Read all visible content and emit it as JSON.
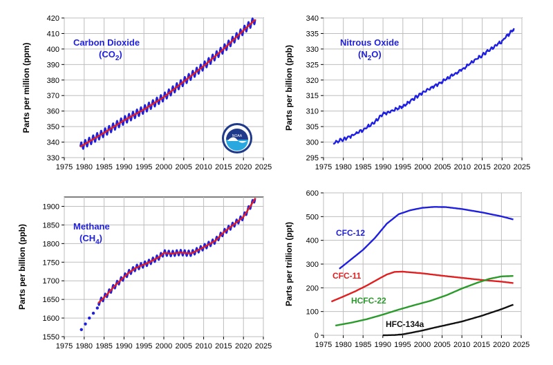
{
  "chart_data": [
    {
      "id": "co2",
      "type": "line",
      "title": "Carbon Dioxide",
      "formula": "(CO",
      "formula_sub": "2",
      "formula_end": ")",
      "ylabel": "Parts per million (ppm)",
      "xlim": [
        1975,
        2025
      ],
      "ylim": [
        330,
        420
      ],
      "xticks": [
        "1975",
        "1980",
        "1985",
        "1990",
        "1995",
        "2000",
        "2005",
        "2010",
        "2015",
        "2020",
        "2025"
      ],
      "yticks": [
        "330",
        "340",
        "350",
        "360",
        "370",
        "380",
        "390",
        "400",
        "410",
        "420"
      ],
      "series": [
        {
          "color": "#1f1fe0",
          "style": "seasonal",
          "amplitude": 2.6,
          "x": [
            1979,
            1985,
            1990,
            1995,
            2000,
            2005,
            2010,
            2015,
            2020,
            2023
          ],
          "values": [
            337,
            346,
            354,
            361,
            369,
            379,
            389,
            400,
            412,
            419
          ]
        },
        {
          "color": "#e02020",
          "style": "smooth",
          "x": [
            1979,
            1985,
            1990,
            1995,
            2000,
            2005,
            2010,
            2015,
            2020,
            2023
          ],
          "values": [
            337,
            346,
            354,
            361,
            369,
            379,
            389,
            400,
            412,
            419
          ]
        }
      ]
    },
    {
      "id": "n2o",
      "type": "line",
      "title": "Nitrous Oxide",
      "formula": "(N",
      "formula_sub": "2",
      "formula_end": "O)",
      "ylabel": "Parts per billion (ppb)",
      "xlim": [
        1975,
        2025
      ],
      "ylim": [
        295,
        340
      ],
      "xticks": [
        "1975",
        "1980",
        "1985",
        "1990",
        "1995",
        "2000",
        "2005",
        "2010",
        "2015",
        "2020",
        "2025"
      ],
      "yticks": [
        "295",
        "300",
        "305",
        "310",
        "315",
        "320",
        "325",
        "330",
        "335",
        "340"
      ],
      "series": [
        {
          "color": "#1f1fe0",
          "style": "noisy",
          "x": [
            1977.5,
            1979,
            1980,
            1982,
            1985,
            1988,
            1990,
            1993,
            1995,
            2000,
            2005,
            2010,
            2015,
            2020,
            2023
          ],
          "values": [
            299.5,
            300.5,
            300.8,
            302,
            304,
            306.5,
            309,
            310.5,
            311.5,
            316,
            319.5,
            323.5,
            328,
            332.5,
            336.5
          ]
        }
      ]
    },
    {
      "id": "ch4",
      "type": "line",
      "title": "Methane",
      "formula": "(CH",
      "formula_sub": "4",
      "formula_end": ")",
      "ylabel": "Parts per billion (ppb)",
      "xlim": [
        1975,
        2025
      ],
      "ylim": [
        1550,
        1925
      ],
      "xticks": [
        "1975",
        "1980",
        "1985",
        "1990",
        "1995",
        "2000",
        "2005",
        "2010",
        "2015",
        "2020",
        "2025"
      ],
      "yticks": [
        "1550",
        "1600",
        "1650",
        "1700",
        "1750",
        "1800",
        "1850",
        "1900"
      ],
      "series": [
        {
          "color": "#1f1fe0",
          "style": "dots",
          "x": [
            1979.3,
            1980.3,
            1981.3,
            1982.3,
            1983.3
          ],
          "values": [
            1569,
            1584,
            1600,
            1613,
            1627
          ]
        },
        {
          "color": "#1f1fe0",
          "style": "seasonal",
          "amplitude": 8,
          "x": [
            1983.5,
            1985,
            1988,
            1991,
            1993,
            1996,
            1999,
            2000,
            2002,
            2004,
            2006,
            2007,
            2010,
            2013,
            2015,
            2018,
            2020,
            2022,
            2023
          ],
          "values": [
            1640,
            1655,
            1690,
            1720,
            1735,
            1748,
            1765,
            1775,
            1773,
            1776,
            1774,
            1774,
            1790,
            1808,
            1830,
            1855,
            1872,
            1905,
            1922
          ]
        },
        {
          "color": "#e02020",
          "style": "smooth",
          "x": [
            1983.5,
            1985,
            1988,
            1991,
            1993,
            1996,
            1999,
            2000,
            2002,
            2004,
            2006,
            2007,
            2010,
            2013,
            2015,
            2018,
            2020,
            2022,
            2023
          ],
          "values": [
            1640,
            1655,
            1690,
            1720,
            1735,
            1748,
            1765,
            1775,
            1773,
            1776,
            1774,
            1774,
            1790,
            1808,
            1830,
            1855,
            1872,
            1905,
            1922
          ]
        }
      ]
    },
    {
      "id": "halocarbons",
      "type": "line",
      "title": "",
      "ylabel": "Parts per trillion (ppt)",
      "xlim": [
        1975,
        2025
      ],
      "ylim": [
        0,
        600
      ],
      "xticks": [
        "1975",
        "1980",
        "1985",
        "1990",
        "1995",
        "2000",
        "2005",
        "2010",
        "2015",
        "2020",
        "2025"
      ],
      "yticks": [
        "0",
        "100",
        "200",
        "300",
        "400",
        "500",
        "600"
      ],
      "series": [
        {
          "name": "CFC-12",
          "color": "#1f1fe0",
          "style": "smooth",
          "x": [
            1979,
            1982,
            1985,
            1988,
            1991,
            1994,
            1997,
            2000,
            2003,
            2006,
            2010,
            2015,
            2020,
            2023
          ],
          "values": [
            280,
            320,
            360,
            410,
            470,
            510,
            527,
            537,
            541,
            540,
            532,
            518,
            501,
            488
          ]
        },
        {
          "name": "CFC-11",
          "color": "#e02020",
          "style": "smooth",
          "x": [
            1977,
            1980,
            1983,
            1986,
            1989,
            1991,
            1993,
            1995,
            2000,
            2005,
            2010,
            2015,
            2020,
            2023
          ],
          "values": [
            142,
            163,
            185,
            210,
            238,
            256,
            267,
            268,
            261,
            251,
            242,
            233,
            226,
            220
          ]
        },
        {
          "name": "HCFC-22",
          "color": "#2a9a2a",
          "style": "smooth",
          "x": [
            1978,
            1982,
            1986,
            1990,
            1994,
            1998,
            2002,
            2006,
            2010,
            2014,
            2017,
            2020,
            2023
          ],
          "values": [
            41,
            53,
            68,
            87,
            108,
            127,
            145,
            168,
            197,
            222,
            238,
            248,
            250
          ]
        },
        {
          "name": "HFC-134a",
          "color": "#111111",
          "style": "smooth",
          "x": [
            1990,
            1993,
            1995,
            1997,
            2000,
            2003,
            2006,
            2010,
            2015,
            2020,
            2023
          ],
          "values": [
            0,
            1,
            4,
            10,
            20,
            32,
            43,
            58,
            82,
            110,
            129
          ]
        }
      ]
    }
  ],
  "logo": {
    "name": "noaa-logo",
    "color_outer": "#1f3a8a",
    "color_inner": "#29a8e0"
  }
}
